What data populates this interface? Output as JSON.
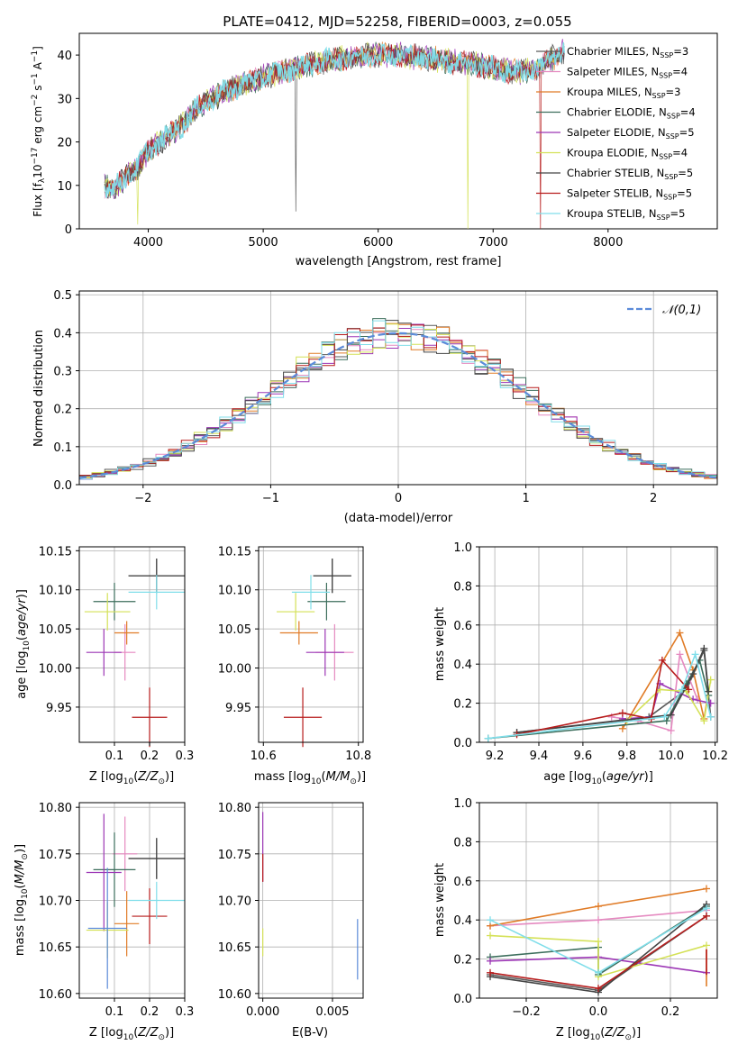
{
  "figure": {
    "title": "PLATE=0412, MJD=52258, FIBERID=0003, z=0.055"
  },
  "spectrum": {
    "xlabel": "wavelength [Angstrom, rest frame]",
    "ylabel": "Flux [f_λ 10^-17 erg cm^-2 s^-1 A^-1]",
    "xticks": [
      "4000",
      "5000",
      "6000",
      "7000",
      "8000"
    ],
    "yticks": [
      "0",
      "10",
      "20",
      "30",
      "40"
    ],
    "legend": [
      {
        "label": "Chabrier MILES, N_SSP=3",
        "color": "#5a5a5a"
      },
      {
        "label": "Salpeter MILES, N_SSP=4",
        "color": "#e589c0"
      },
      {
        "label": "Kroupa MILES, N_SSP=3",
        "color": "#e07b26"
      },
      {
        "label": "Chabrier ELODIE, N_SSP=4",
        "color": "#3c6e5c"
      },
      {
        "label": "Salpeter ELODIE, N_SSP=5",
        "color": "#9c36b5"
      },
      {
        "label": "Kroupa ELODIE, N_SSP=4",
        "color": "#d4e157"
      },
      {
        "label": "Chabrier STELIB, N_SSP=5",
        "color": "#444444"
      },
      {
        "label": "Salpeter STELIB, N_SSP=5",
        "color": "#b71c1c"
      },
      {
        "label": "Kroupa STELIB, N_SSP=5",
        "color": "#80deea"
      }
    ]
  },
  "histogram": {
    "xlabel": "(data-model)/error",
    "ylabel": "Normed distribution",
    "xticks": [
      "−2",
      "−1",
      "0",
      "1",
      "2"
    ],
    "yticks": [
      "0.0",
      "0.1",
      "0.2",
      "0.3",
      "0.4",
      "0.5"
    ],
    "legend_label": "𝒩(0,1)"
  },
  "panel_labels": {
    "z_xlabel": "Z [log10(Z/Z⊙)]",
    "age_ylabel": "age [log10(age/yr)]",
    "mass_xlabel": "mass [log10(M/M⊙)]",
    "mw_ylabel": "mass weight",
    "age_xlabel": "age [log10(age/yr)]",
    "mass_ylabel": "mass [log10(M/M⊙)]",
    "ebv_xlabel": "E(B-V)",
    "z2_xlabel": "Z [log10(Z/Z⊙)]"
  },
  "ticks": {
    "zx": [
      "0.1",
      "0.2",
      "0.3"
    ],
    "age_y": [
      "9.95",
      "10.00",
      "10.05",
      "10.10",
      "10.15"
    ],
    "mass_x": [
      "10.6",
      "10.8"
    ],
    "mw_y": [
      "0.0",
      "0.2",
      "0.4",
      "0.6",
      "0.8",
      "1.0"
    ],
    "age_x": [
      "9.2",
      "9.4",
      "9.6",
      "9.8",
      "10.0",
      "10.2"
    ],
    "mass_y": [
      "10.60",
      "10.65",
      "10.70",
      "10.75",
      "10.80"
    ],
    "ebv_x": [
      "0.000",
      "0.005"
    ],
    "z2_x": [
      "−0.2",
      "0.0",
      "0.2"
    ]
  },
  "chart_data": [
    {
      "type": "line",
      "title": "PLATE=0412, MJD=52258, FIBERID=0003, z=0.055",
      "xlabel": "wavelength [Angstrom, rest frame]",
      "ylabel": "Flux [fλ 10^-17 erg cm^-2 s^-1 A^-1]",
      "xlim": [
        3400,
        8950
      ],
      "ylim": [
        0,
        45
      ],
      "x": [
        3620,
        3700,
        3800,
        3900,
        4000,
        4100,
        4200,
        4300,
        4400,
        4500,
        4700,
        5000,
        5300,
        5600,
        5900,
        6200,
        6500,
        6800,
        7000,
        7200,
        7400,
        7600
      ],
      "y": [
        10,
        9,
        12,
        14,
        18,
        20,
        22,
        24,
        27,
        29,
        32,
        35,
        37,
        39,
        40,
        40,
        39,
        38,
        37,
        36,
        37,
        41
      ]
    },
    {
      "type": "bar",
      "xlabel": "(data-model)/error",
      "ylabel": "Normed distribution",
      "xlim": [
        -2.5,
        2.5
      ],
      "ylim": [
        0,
        0.51
      ],
      "bin_width": 0.1,
      "reference": "N(0,1)"
    },
    {
      "type": "scatter",
      "xlabel": "Z [log10(Z/Z⊙)]",
      "ylabel": "age [log10(age/yr)]",
      "xlim": [
        0.0,
        0.3
      ],
      "ylim": [
        9.905,
        10.155
      ],
      "series": [
        {
          "name": "Chabrier MILES",
          "x": 0.22,
          "y": 10.118,
          "xerr": 0.08,
          "yerr": 0.022,
          "color": "#5a5a5a"
        },
        {
          "name": "Salpeter MILES",
          "x": 0.13,
          "y": 10.02,
          "xerr": 0.03,
          "yerr": 0.036,
          "color": "#e589c0"
        },
        {
          "name": "Kroupa MILES",
          "x": 0.135,
          "y": 10.045,
          "xerr": 0.035,
          "yerr": 0.015,
          "color": "#e07b26"
        },
        {
          "name": "Chabrier ELODIE",
          "x": 0.1,
          "y": 10.085,
          "xerr": 0.06,
          "yerr": 0.024,
          "color": "#3c6e5c"
        },
        {
          "name": "Salpeter ELODIE",
          "x": 0.07,
          "y": 10.02,
          "xerr": 0.05,
          "yerr": 0.03,
          "color": "#9c36b5"
        },
        {
          "name": "Kroupa ELODIE",
          "x": 0.08,
          "y": 10.072,
          "xerr": 0.065,
          "yerr": 0.024,
          "color": "#d4e157"
        },
        {
          "name": "Chabrier STELIB",
          "x": 0.22,
          "y": 10.118,
          "xerr": 0.08,
          "yerr": 0.022,
          "color": "#444444"
        },
        {
          "name": "Salpeter STELIB",
          "x": 0.2,
          "y": 9.937,
          "xerr": 0.05,
          "yerr": 0.038,
          "color": "#b71c1c"
        },
        {
          "name": "Kroupa STELIB",
          "x": 0.22,
          "y": 10.097,
          "xerr": 0.08,
          "yerr": 0.022,
          "color": "#80deea"
        }
      ]
    },
    {
      "type": "scatter",
      "xlabel": "mass [log10(M/M⊙)]",
      "ylabel": "age [log10(age/yr)]",
      "xlim": [
        10.59,
        10.81
      ],
      "ylim": [
        9.905,
        10.155
      ]
    },
    {
      "type": "line",
      "xlabel": "age [log10(age/yr)]",
      "ylabel": "mass weight",
      "xlim": [
        9.13,
        10.21
      ],
      "ylim": [
        0,
        1
      ]
    },
    {
      "type": "scatter",
      "xlabel": "Z [log10(Z/Z⊙)]",
      "ylabel": "mass [log10(M/M⊙)]",
      "xlim": [
        0.0,
        0.3
      ],
      "ylim": [
        10.595,
        10.805
      ]
    },
    {
      "type": "scatter",
      "xlabel": "E(B-V)",
      "ylabel": "mass [log10(M/M⊙)]",
      "xlim": [
        -0.0003,
        0.0072
      ],
      "ylim": [
        10.595,
        10.805
      ]
    },
    {
      "type": "line",
      "xlabel": "Z [log10(Z/Z⊙)]",
      "ylabel": "mass weight",
      "xlim": [
        -0.33,
        0.33
      ],
      "ylim": [
        0,
        1
      ]
    }
  ]
}
